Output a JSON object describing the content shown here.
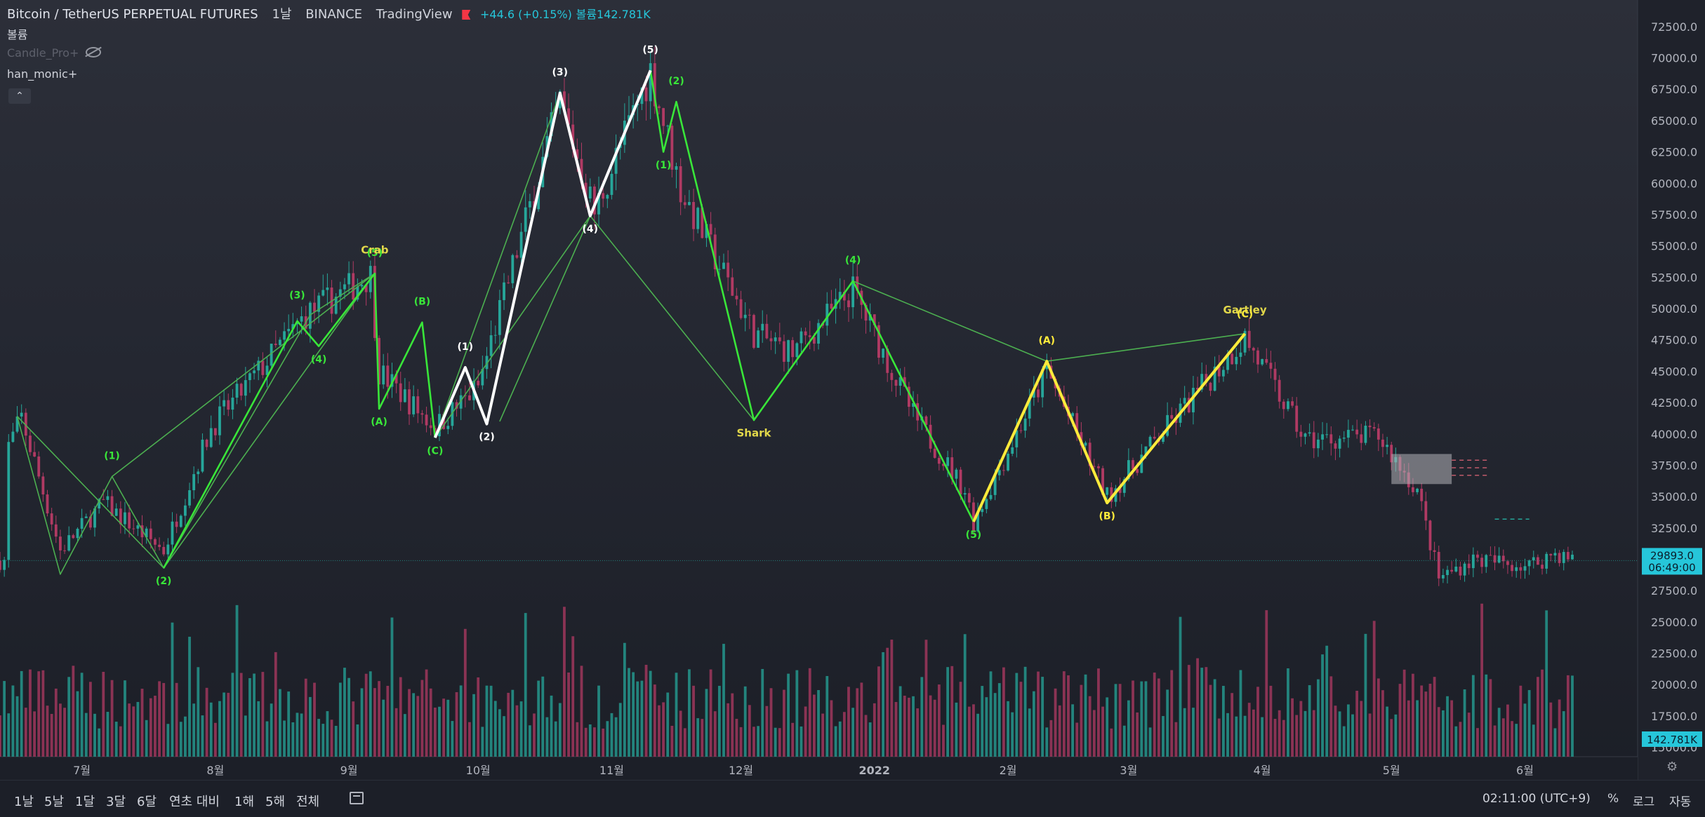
{
  "header": {
    "symbol": "Bitcoin / TetherUS PERPETUAL FUTURES",
    "interval": "1날",
    "exchange": "BINANCE",
    "source": "TradingView",
    "change": "+44.6 (+0.15%)",
    "volume_label": "볼륨",
    "volume_value": "142.781K"
  },
  "indicators": {
    "volume": "볼륨",
    "candle_pro": "Candle_Pro+",
    "han_monic": "han_monic+"
  },
  "chart_data": {
    "type": "candlestick",
    "title": "Bitcoin / TetherUS PERPETUAL FUTURES",
    "price_axis": {
      "ticks": [
        72500,
        70000,
        67500,
        65000,
        62500,
        60000,
        57500,
        55000,
        52500,
        50000,
        47500,
        45000,
        42500,
        40000,
        37500,
        35000,
        32500,
        27500,
        25000,
        22500,
        20000,
        17500,
        15000
      ],
      "range": [
        14250,
        73500
      ]
    },
    "time_axis": {
      "labels": [
        "7월",
        "8월",
        "9월",
        "10월",
        "11월",
        "12월",
        "2022",
        "2월",
        "3월",
        "4월",
        "5월",
        "6월"
      ],
      "start": "2021-06-12",
      "end": "2022-06-12"
    },
    "last_price": "29893.0",
    "countdown": "06:49:00",
    "last_volume": "142.781K",
    "price_path": [
      [
        "2021-06-14",
        39000
      ],
      [
        "2021-06-17",
        41300
      ],
      [
        "2021-06-26",
        30700
      ],
      [
        "2021-07-06",
        34500
      ],
      [
        "2021-07-20",
        30700
      ],
      [
        "2021-07-31",
        40500
      ],
      [
        "2021-08-22",
        49500
      ],
      [
        "2021-09-06",
        52700
      ],
      [
        "2021-09-08",
        45000
      ],
      [
        "2021-09-21",
        40500
      ],
      [
        "2021-10-01",
        43800
      ],
      [
        "2021-10-20",
        66500
      ],
      [
        "2021-10-28",
        57700
      ],
      [
        "2021-11-10",
        69000
      ],
      [
        "2021-11-17",
        59500
      ],
      [
        "2021-12-04",
        48000
      ],
      [
        "2021-12-13",
        46500
      ],
      [
        "2021-12-27",
        51500
      ],
      [
        "2022-01-10",
        41500
      ],
      [
        "2022-01-22",
        35500
      ],
      [
        "2022-01-24",
        33000
      ],
      [
        "2022-02-10",
        45000
      ],
      [
        "2022-02-24",
        35000
      ],
      [
        "2022-03-28",
        47700
      ],
      [
        "2022-04-11",
        39500
      ],
      [
        "2022-04-28",
        39800
      ],
      [
        "2022-05-07",
        35500
      ],
      [
        "2022-05-12",
        28500
      ],
      [
        "2022-05-20",
        30000
      ],
      [
        "2022-06-02",
        29500
      ],
      [
        "2022-06-08",
        30500
      ],
      [
        "2022-06-12",
        29900
      ]
    ],
    "volume_axis_ticks": [
      25000,
      22500,
      20000,
      17500,
      15000
    ],
    "waves": [
      {
        "color": "#4caf50",
        "points": [
          [
            "2021-06-16",
            41400
          ],
          [
            "2021-07-20",
            29300
          ],
          [
            "2021-09-07",
            52800
          ]
        ]
      },
      {
        "color": "#4caf50",
        "points": [
          [
            "2021-06-16",
            41400
          ],
          [
            "2021-06-26",
            28800
          ],
          [
            "2021-07-08",
            36600
          ],
          [
            "2021-07-20",
            29300
          ],
          [
            "2021-08-23",
            49500
          ],
          [
            "2021-09-07",
            52800
          ]
        ]
      },
      {
        "color": "#4caf50",
        "points": [
          [
            "2021-07-08",
            36600
          ],
          [
            "2021-09-07",
            52800
          ]
        ]
      },
      {
        "color": "#4caf50",
        "points": [
          [
            "2021-09-21",
            39700
          ],
          [
            "2021-10-27",
            57400
          ],
          [
            "2021-12-04",
            41100
          ],
          [
            "2021-12-27",
            52200
          ],
          [
            "2022-02-10",
            45800
          ],
          [
            "2022-03-28",
            48000
          ]
        ]
      },
      {
        "color": "#4caf50",
        "points": [
          [
            "2021-09-21",
            39700
          ],
          [
            "2021-10-20",
            67200
          ]
        ]
      },
      {
        "color": "#4caf50",
        "points": [
          [
            "2021-10-06",
            41000
          ],
          [
            "2021-10-27",
            57400
          ]
        ]
      },
      {
        "color": "#39e639",
        "points": [
          [
            "2021-07-20",
            29300
          ],
          [
            "2021-08-20",
            49000
          ],
          [
            "2021-08-25",
            47000
          ],
          [
            "2021-09-07",
            52800
          ],
          [
            "2021-09-08",
            42000
          ],
          [
            "2021-09-18",
            48900
          ],
          [
            "2021-09-21",
            39700
          ]
        ]
      },
      {
        "color": "#39e639",
        "points": [
          [
            "2021-11-10",
            69000
          ],
          [
            "2021-11-13",
            62500
          ],
          [
            "2021-11-16",
            66500
          ],
          [
            "2021-12-04",
            41100
          ],
          [
            "2021-12-27",
            52200
          ],
          [
            "2022-01-24",
            33000
          ]
        ]
      },
      {
        "color": "#ffffff",
        "points": [
          [
            "2021-09-21",
            39700
          ],
          [
            "2021-09-28",
            45300
          ],
          [
            "2021-10-03",
            40800
          ],
          [
            "2021-10-20",
            67200
          ],
          [
            "2021-10-27",
            57400
          ],
          [
            "2021-11-10",
            69000
          ]
        ]
      },
      {
        "color": "#ffeb3b",
        "points": [
          [
            "2022-01-24",
            33000
          ],
          [
            "2022-02-10",
            45800
          ],
          [
            "2022-02-24",
            34500
          ],
          [
            "2022-03-28",
            48000
          ]
        ]
      }
    ],
    "wave_labels": [
      {
        "text": "(1)",
        "date": "2021-07-08",
        "price": 38000,
        "color": "#39e639"
      },
      {
        "text": "(2)",
        "date": "2021-07-20",
        "price": 28000,
        "color": "#39e639"
      },
      {
        "text": "(3)",
        "date": "2021-08-20",
        "price": 50800,
        "color": "#39e639"
      },
      {
        "text": "(4)",
        "date": "2021-08-25",
        "price": 45700,
        "color": "#39e639"
      },
      {
        "text": "(5)",
        "date": "2021-09-07",
        "price": 54200,
        "color": "#39e639"
      },
      {
        "text": "Crab",
        "date": "2021-09-07",
        "price": 54400,
        "color": "#e2d84a"
      },
      {
        "text": "(A)",
        "date": "2021-09-08",
        "price": 40700,
        "color": "#39e639"
      },
      {
        "text": "(B)",
        "date": "2021-09-18",
        "price": 50300,
        "color": "#39e639"
      },
      {
        "text": "(C)",
        "date": "2021-09-21",
        "price": 38400,
        "color": "#39e639"
      },
      {
        "text": "(1)",
        "date": "2021-09-28",
        "price": 46700,
        "color": "#ffffff"
      },
      {
        "text": "(2)",
        "date": "2021-10-03",
        "price": 39500,
        "color": "#ffffff"
      },
      {
        "text": "(3)",
        "date": "2021-10-20",
        "price": 68600,
        "color": "#ffffff"
      },
      {
        "text": "(4)",
        "date": "2021-10-27",
        "price": 56100,
        "color": "#ffffff"
      },
      {
        "text": "(5)",
        "date": "2021-11-10",
        "price": 70400,
        "color": "#ffffff"
      },
      {
        "text": "(2)",
        "date": "2021-11-16",
        "price": 67900,
        "color": "#39e639"
      },
      {
        "text": "(1)",
        "date": "2021-11-13",
        "price": 61200,
        "color": "#39e639"
      },
      {
        "text": "Shark",
        "date": "2021-12-04",
        "price": 39800,
        "color": "#e2d84a"
      },
      {
        "text": "(4)",
        "date": "2021-12-27",
        "price": 53600,
        "color": "#39e639"
      },
      {
        "text": "(5)",
        "date": "2022-01-24",
        "price": 31700,
        "color": "#39e639"
      },
      {
        "text": "(A)",
        "date": "2022-02-10",
        "price": 47200,
        "color": "#ffeb3b"
      },
      {
        "text": "(B)",
        "date": "2022-02-24",
        "price": 33200,
        "color": "#ffeb3b"
      },
      {
        "text": "Gartley",
        "date": "2022-03-28",
        "price": 49600,
        "color": "#e2d84a"
      },
      {
        "text": "(C)",
        "date": "2022-03-28",
        "price": 49300,
        "color": "#ffeb3b"
      }
    ],
    "last_price_line": 29893,
    "supply_zone": {
      "from": "2022-05-01",
      "to": "2022-05-15",
      "top": 38400,
      "bottom": 36000
    }
  },
  "timeframes": [
    "1날",
    "5날",
    "1달",
    "3달",
    "6달",
    "연초 대비",
    "1해",
    "5해",
    "전체"
  ],
  "footer": {
    "clock": "02:11:00 (UTC+9)",
    "percent": "%",
    "log": "로그",
    "auto": "자동"
  }
}
